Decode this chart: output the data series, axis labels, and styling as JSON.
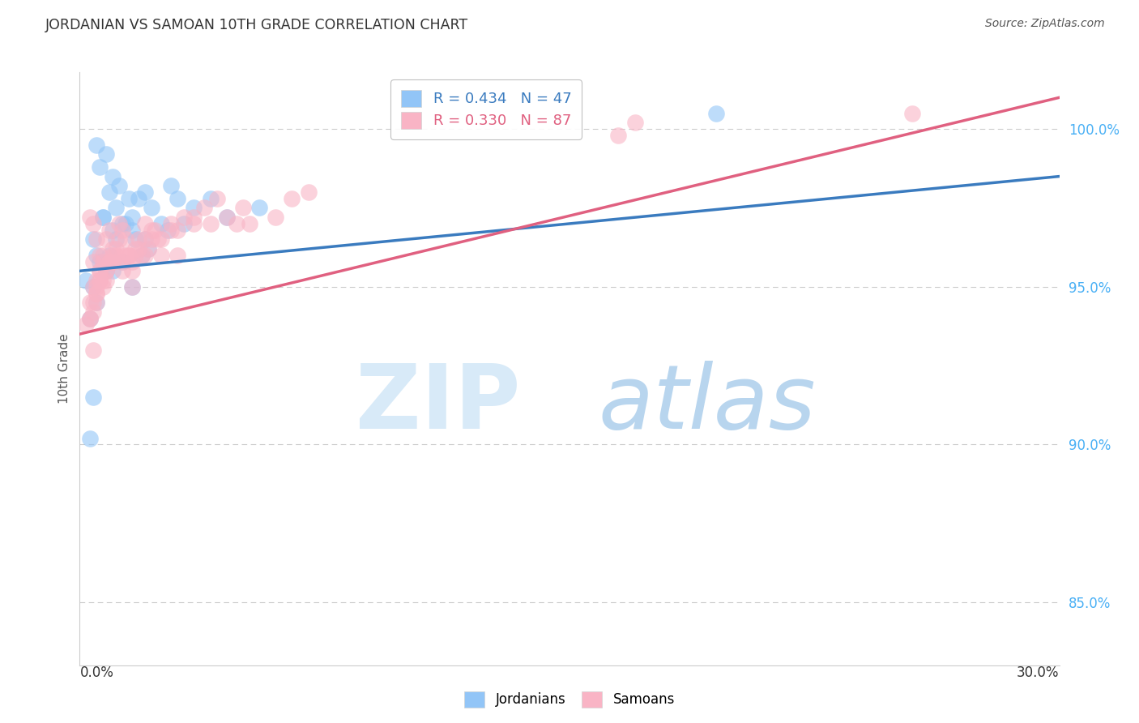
{
  "title": "JORDANIAN VS SAMOAN 10TH GRADE CORRELATION CHART",
  "source": "Source: ZipAtlas.com",
  "ylabel": "10th Grade",
  "ytick_values": [
    85.0,
    90.0,
    95.0,
    100.0
  ],
  "xlim": [
    0.0,
    30.0
  ],
  "ylim": [
    83.0,
    101.8
  ],
  "legend_blue_text_r": "R = 0.434",
  "legend_blue_text_n": "N = 47",
  "legend_pink_text_r": "R = 0.330",
  "legend_pink_text_n": "N = 87",
  "blue_scatter_color": "#92c5f7",
  "pink_scatter_color": "#f9b4c5",
  "blue_line_color": "#3a7bbf",
  "pink_line_color": "#e06080",
  "blue_trend_x": [
    0.0,
    30.0
  ],
  "blue_trend_y": [
    95.5,
    98.5
  ],
  "pink_trend_x": [
    0.0,
    30.0
  ],
  "pink_trend_y": [
    93.5,
    101.0
  ],
  "jordanians_x": [
    0.5,
    0.8,
    0.6,
    1.0,
    1.2,
    0.9,
    1.5,
    1.1,
    0.7,
    1.4,
    1.3,
    1.6,
    0.4,
    0.7,
    1.0,
    1.8,
    2.0,
    2.2,
    1.6,
    0.9,
    1.1,
    0.6,
    0.8,
    1.7,
    2.5,
    3.0,
    2.8,
    3.5,
    4.0,
    0.3,
    0.5,
    1.3,
    1.6,
    2.1,
    3.2,
    4.5,
    1.9,
    5.5,
    2.7,
    0.4,
    0.3,
    19.5,
    0.2,
    0.5,
    1.0,
    2.0,
    0.4
  ],
  "jordanians_y": [
    99.5,
    99.2,
    98.8,
    98.5,
    98.2,
    98.0,
    97.8,
    97.5,
    97.2,
    97.0,
    97.0,
    96.8,
    96.5,
    97.2,
    96.8,
    97.8,
    98.0,
    97.5,
    97.2,
    96.0,
    96.5,
    95.8,
    95.5,
    96.5,
    97.0,
    97.8,
    98.2,
    97.5,
    97.8,
    94.0,
    94.5,
    95.8,
    95.0,
    96.2,
    97.0,
    97.2,
    96.0,
    97.5,
    96.8,
    91.5,
    90.2,
    100.5,
    95.2,
    96.0,
    95.5,
    96.5,
    95.0
  ],
  "samoans_x": [
    0.3,
    0.5,
    0.4,
    0.6,
    0.8,
    1.0,
    0.7,
    0.9,
    1.2,
    1.4,
    1.6,
    1.1,
    1.3,
    0.5,
    0.7,
    1.0,
    1.8,
    2.0,
    2.3,
    1.7,
    0.4,
    0.6,
    0.8,
    1.5,
    2.2,
    2.8,
    3.2,
    3.8,
    4.2,
    0.3,
    0.2,
    0.4,
    1.3,
    1.6,
    2.0,
    3.0,
    4.5,
    0.5,
    1.9,
    5.2,
    6.0,
    0.3,
    2.5,
    0.4,
    3.0,
    0.6,
    1.1,
    1.3,
    4.8,
    0.5,
    0.8,
    1.5,
    2.1,
    0.7,
    1.2,
    0.9,
    2.4,
    1.6,
    3.5,
    5.0,
    7.0,
    0.4,
    1.0,
    2.8,
    0.6,
    1.8,
    0.5,
    3.5,
    0.3,
    2.0,
    1.4,
    0.8,
    4.0,
    0.5,
    1.7,
    25.5,
    0.4,
    6.5,
    2.5,
    1.0,
    0.7,
    1.3,
    2.2,
    0.6,
    0.9,
    16.5,
    17.0
  ],
  "samoans_y": [
    97.2,
    96.5,
    97.0,
    96.0,
    96.5,
    96.2,
    95.8,
    96.8,
    97.0,
    96.5,
    95.5,
    96.0,
    96.8,
    95.2,
    96.0,
    95.8,
    96.5,
    97.0,
    96.8,
    96.0,
    95.0,
    95.5,
    95.2,
    96.0,
    96.5,
    97.0,
    97.2,
    97.5,
    97.8,
    94.5,
    93.8,
    95.8,
    95.5,
    95.0,
    96.0,
    96.8,
    97.2,
    94.5,
    96.0,
    97.0,
    97.2,
    94.0,
    96.5,
    93.0,
    96.0,
    95.5,
    96.2,
    95.8,
    97.0,
    94.8,
    95.5,
    96.0,
    96.2,
    95.0,
    96.5,
    95.8,
    96.5,
    95.8,
    97.2,
    97.5,
    98.0,
    94.2,
    96.0,
    96.8,
    95.2,
    96.2,
    95.0,
    97.0,
    94.0,
    96.5,
    96.0,
    95.5,
    97.0,
    94.8,
    96.2,
    100.5,
    94.5,
    97.8,
    96.0,
    95.8,
    95.2,
    96.0,
    96.8,
    95.2,
    95.8,
    99.8,
    100.2
  ]
}
